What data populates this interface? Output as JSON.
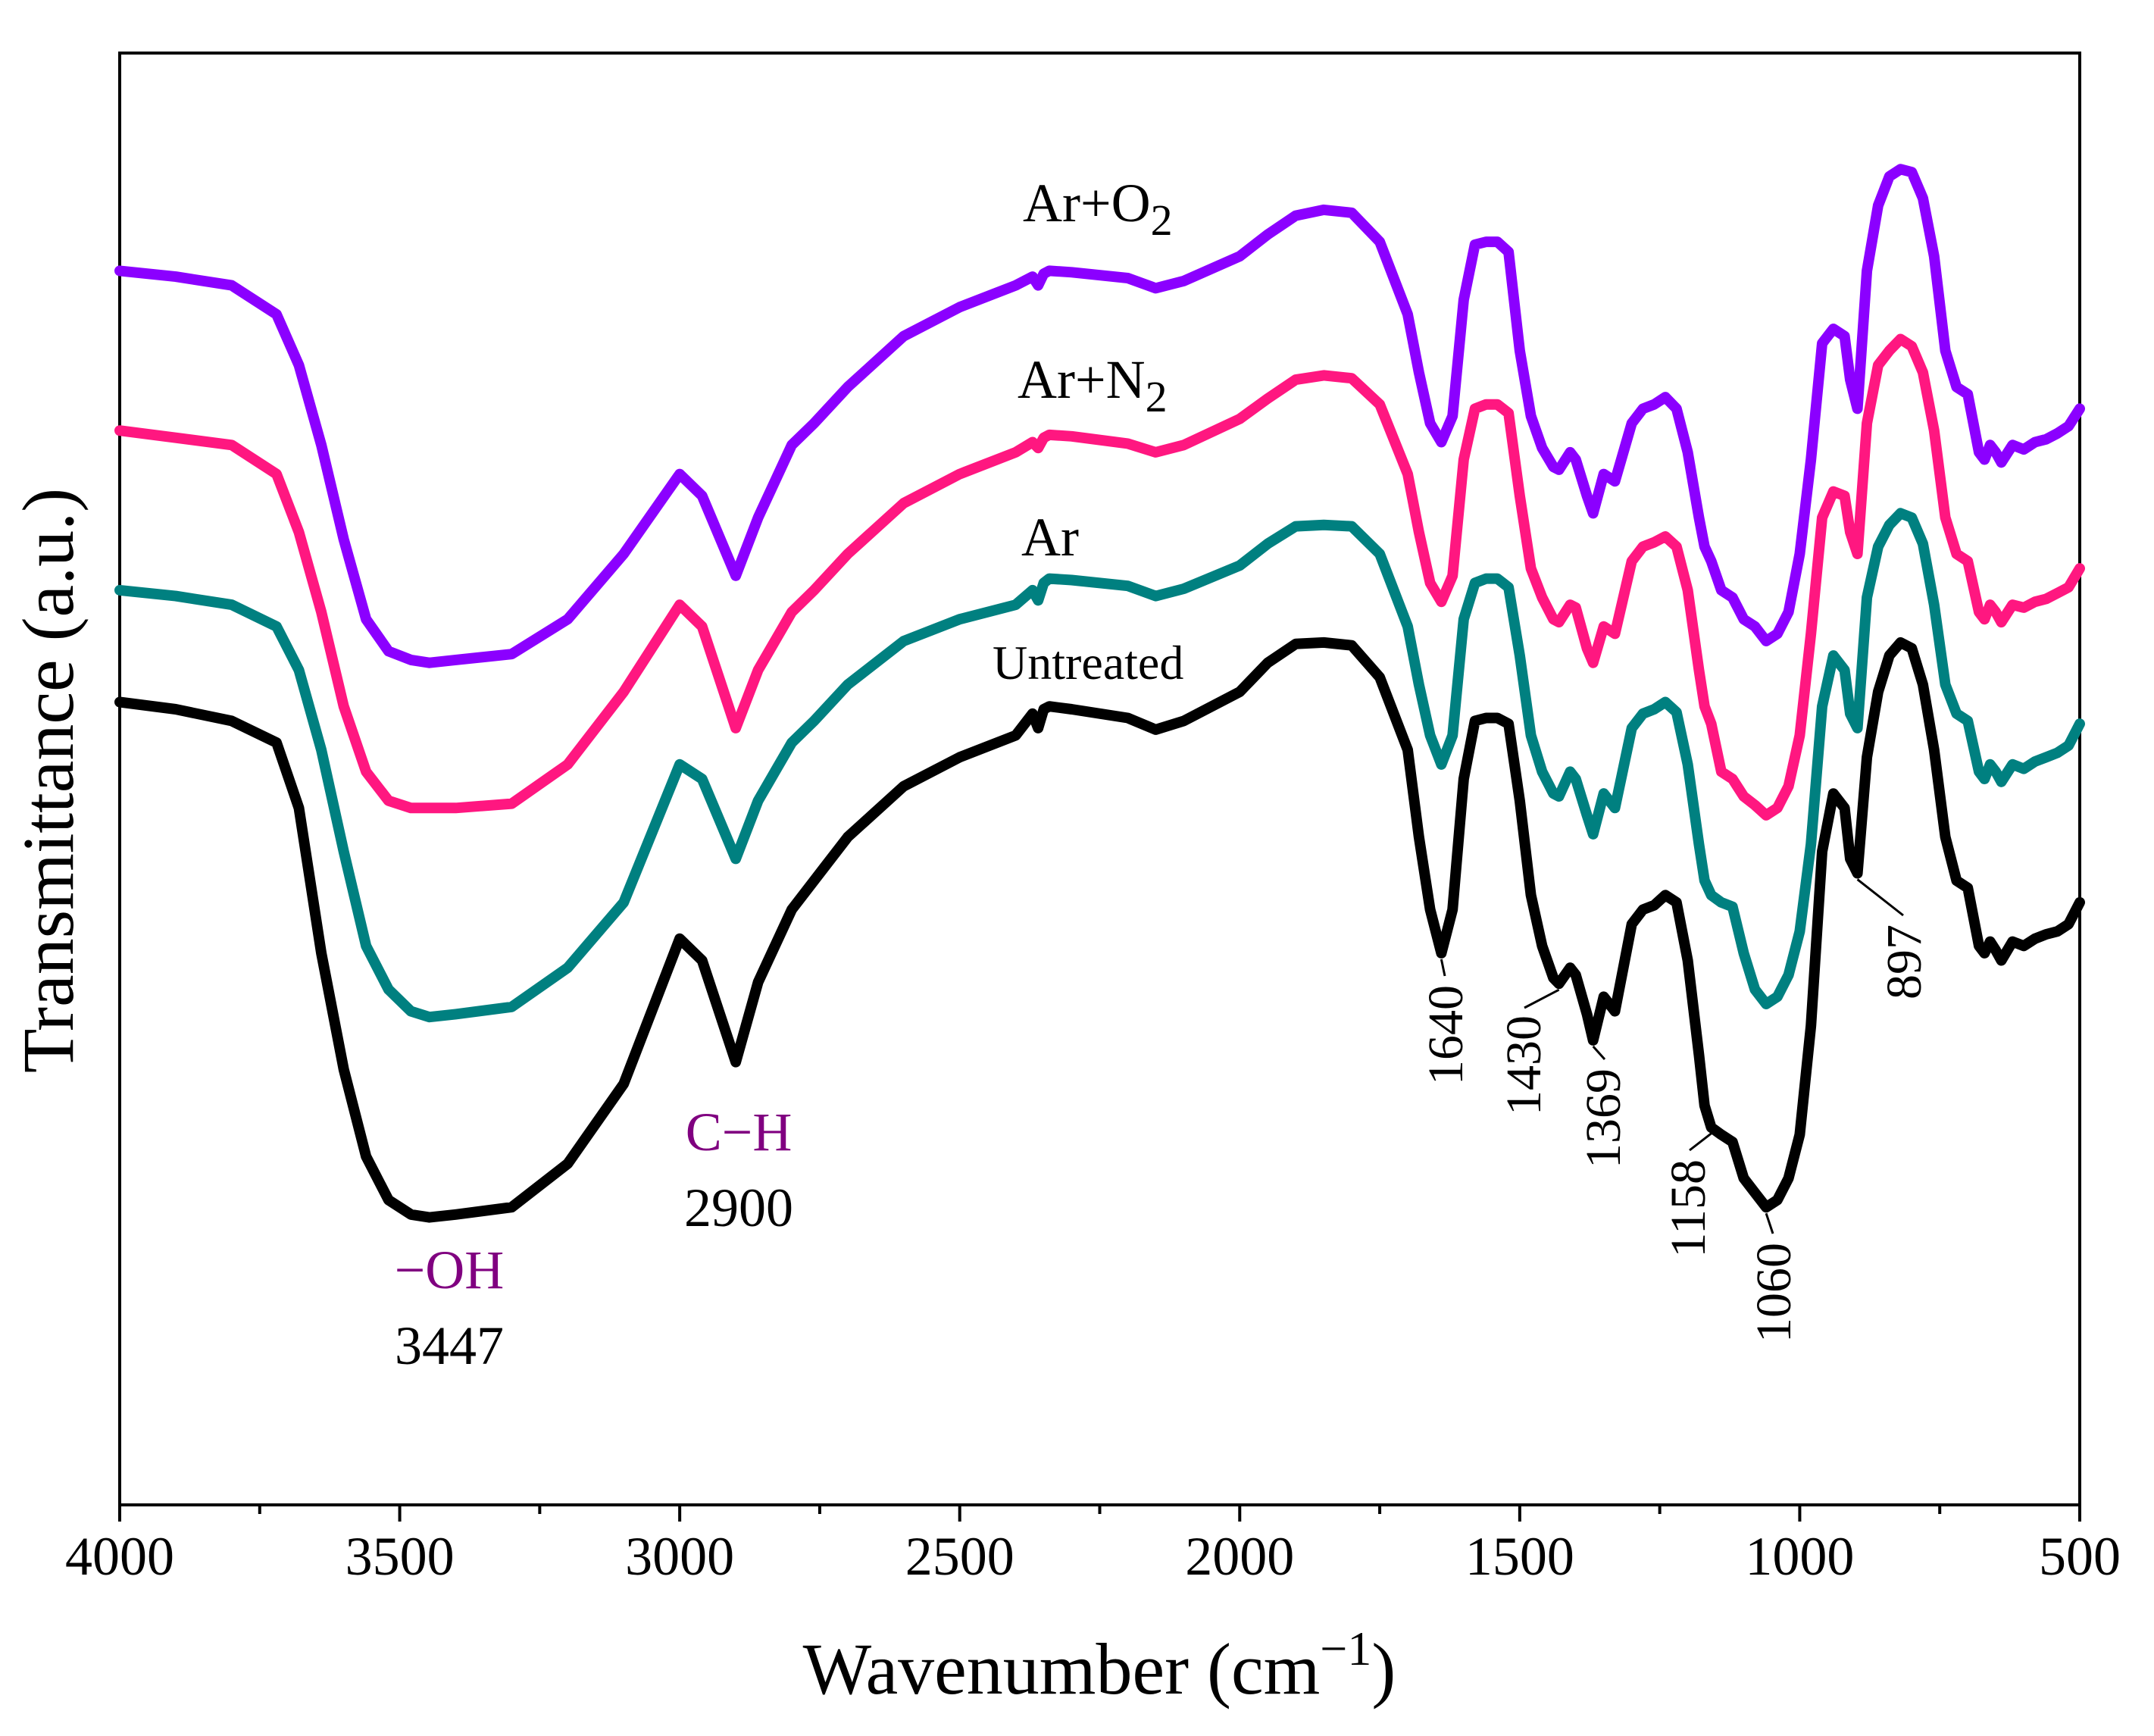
{
  "chart_data": {
    "type": "line",
    "title": "",
    "xlabel": "Wavenumber (cm",
    "xlabel_sup": "−1",
    "xlabel_close": ")",
    "ylabel": "Transmittance (a.u.)",
    "xlim": [
      4000,
      500
    ],
    "ylim": [
      0,
      100
    ],
    "x_ticks": [
      4000,
      3500,
      3000,
      2500,
      2000,
      1500,
      1000,
      500
    ],
    "x_tick_labels": [
      "4000",
      "3500",
      "3000",
      "2500",
      "2000",
      "1500",
      "1000",
      "500"
    ],
    "series": [
      {
        "name": "Untreated",
        "label": "Untreated",
        "color": "#000000",
        "x": [
          4000,
          3900,
          3800,
          3720,
          3680,
          3640,
          3600,
          3560,
          3520,
          3480,
          3447,
          3400,
          3300,
          3200,
          3100,
          3000,
          2960,
          2900,
          2860,
          2800,
          2760,
          2700,
          2600,
          2500,
          2400,
          2370,
          2360,
          2350,
          2340,
          2300,
          2200,
          2150,
          2100,
          2000,
          1950,
          1900,
          1850,
          1800,
          1750,
          1700,
          1680,
          1660,
          1640,
          1620,
          1600,
          1580,
          1560,
          1540,
          1520,
          1500,
          1480,
          1460,
          1440,
          1430,
          1410,
          1400,
          1380,
          1369,
          1350,
          1330,
          1300,
          1280,
          1260,
          1240,
          1220,
          1200,
          1180,
          1170,
          1158,
          1140,
          1120,
          1100,
          1080,
          1060,
          1040,
          1020,
          1000,
          980,
          960,
          940,
          920,
          910,
          897,
          880,
          860,
          840,
          820,
          800,
          780,
          760,
          740,
          720,
          700,
          680,
          670,
          660,
          650,
          640,
          620,
          600,
          580,
          560,
          540,
          520,
          500
        ],
        "y": [
          55.3,
          54.8,
          54.0,
          52.5,
          48.0,
          38.0,
          30.0,
          24.0,
          21.0,
          20.0,
          19.8,
          20.0,
          20.5,
          23.5,
          29.0,
          39.0,
          37.5,
          30.5,
          36.0,
          41.0,
          43.0,
          46.0,
          49.5,
          51.5,
          53.0,
          54.5,
          53.5,
          54.8,
          55.0,
          54.8,
          54.2,
          53.4,
          54.0,
          56.0,
          58.0,
          59.3,
          59.4,
          59.2,
          57.0,
          52.0,
          46.0,
          41.0,
          38.0,
          41.0,
          50.0,
          54.0,
          54.2,
          54.2,
          53.8,
          48.5,
          42.0,
          38.5,
          36.3,
          35.9,
          37.0,
          36.5,
          33.8,
          32.0,
          35.0,
          34.0,
          40.0,
          41.0,
          41.3,
          42.0,
          41.5,
          37.5,
          31.0,
          27.5,
          26.0,
          25.5,
          25.0,
          22.5,
          21.5,
          20.5,
          21.0,
          22.5,
          25.5,
          33.0,
          45.0,
          49.0,
          48.0,
          44.5,
          43.5,
          51.5,
          56.0,
          58.5,
          59.4,
          59.0,
          56.5,
          52.0,
          46.0,
          43.0,
          42.5,
          38.5,
          38.0,
          38.8,
          38.2,
          37.5,
          38.8,
          38.5,
          39.0,
          39.3,
          39.5,
          40.0,
          41.5
        ]
      },
      {
        "name": "Ar",
        "label": "Ar",
        "color": "#008080",
        "x": [
          4000,
          3900,
          3800,
          3720,
          3680,
          3640,
          3600,
          3560,
          3520,
          3480,
          3447,
          3400,
          3300,
          3200,
          3100,
          3000,
          2960,
          2900,
          2860,
          2800,
          2760,
          2700,
          2600,
          2500,
          2400,
          2370,
          2360,
          2350,
          2340,
          2300,
          2200,
          2150,
          2100,
          2000,
          1950,
          1900,
          1850,
          1800,
          1750,
          1700,
          1680,
          1660,
          1640,
          1620,
          1600,
          1580,
          1560,
          1540,
          1520,
          1500,
          1480,
          1460,
          1440,
          1430,
          1410,
          1400,
          1380,
          1369,
          1350,
          1330,
          1300,
          1280,
          1260,
          1240,
          1220,
          1200,
          1180,
          1170,
          1158,
          1140,
          1120,
          1100,
          1080,
          1060,
          1040,
          1020,
          1000,
          980,
          960,
          940,
          920,
          910,
          897,
          880,
          860,
          840,
          820,
          800,
          780,
          760,
          740,
          720,
          700,
          680,
          670,
          660,
          650,
          640,
          620,
          600,
          580,
          560,
          540,
          520,
          500
        ],
        "y": [
          63.0,
          62.6,
          62.0,
          60.5,
          57.5,
          52.0,
          45.0,
          38.5,
          35.5,
          34.0,
          33.6,
          33.8,
          34.3,
          37.0,
          41.5,
          51.0,
          50.0,
          44.5,
          48.5,
          52.5,
          54.0,
          56.5,
          59.5,
          61.0,
          62.0,
          63.0,
          62.3,
          63.5,
          63.8,
          63.7,
          63.3,
          62.6,
          63.1,
          64.7,
          66.2,
          67.4,
          67.5,
          67.4,
          65.5,
          60.5,
          56.5,
          53.0,
          51.0,
          53.0,
          61.0,
          63.5,
          63.8,
          63.8,
          63.2,
          58.5,
          53.0,
          50.5,
          49.0,
          48.8,
          50.5,
          50.0,
          47.5,
          46.2,
          49.0,
          48.0,
          53.5,
          54.5,
          54.8,
          55.3,
          54.6,
          51.0,
          45.5,
          43.0,
          42.0,
          41.5,
          41.2,
          38.0,
          35.5,
          34.5,
          35.0,
          36.5,
          39.5,
          45.5,
          55.0,
          58.5,
          57.5,
          54.5,
          53.5,
          62.5,
          66.0,
          67.5,
          68.3,
          68.0,
          66.2,
          62.0,
          56.5,
          54.5,
          54.0,
          50.5,
          50.0,
          51.0,
          50.5,
          49.8,
          51.0,
          50.7,
          51.2,
          51.5,
          51.8,
          52.3,
          53.8
        ]
      },
      {
        "name": "Ar+N2",
        "label": "Ar+N",
        "label_sub": "2",
        "color": "#FF1780",
        "x": [
          4000,
          3900,
          3800,
          3720,
          3680,
          3640,
          3600,
          3560,
          3520,
          3480,
          3447,
          3400,
          3300,
          3200,
          3100,
          3000,
          2960,
          2900,
          2860,
          2800,
          2760,
          2700,
          2600,
          2500,
          2400,
          2370,
          2360,
          2350,
          2340,
          2300,
          2200,
          2150,
          2100,
          2000,
          1950,
          1900,
          1850,
          1800,
          1750,
          1700,
          1680,
          1660,
          1640,
          1620,
          1600,
          1580,
          1560,
          1540,
          1520,
          1500,
          1480,
          1460,
          1440,
          1430,
          1410,
          1400,
          1380,
          1369,
          1350,
          1330,
          1300,
          1280,
          1260,
          1240,
          1220,
          1200,
          1180,
          1170,
          1158,
          1140,
          1120,
          1100,
          1080,
          1060,
          1040,
          1020,
          1000,
          980,
          960,
          940,
          920,
          910,
          897,
          880,
          860,
          840,
          820,
          800,
          780,
          760,
          740,
          720,
          700,
          680,
          670,
          660,
          650,
          640,
          620,
          600,
          580,
          560,
          540,
          520,
          500
        ],
        "y": [
          74.0,
          73.5,
          73.0,
          71.0,
          67.0,
          61.5,
          55.0,
          50.5,
          48.5,
          48.0,
          48.0,
          48.0,
          48.3,
          51.0,
          56.0,
          62.0,
          60.5,
          53.5,
          57.5,
          61.5,
          63.0,
          65.5,
          69.0,
          71.0,
          72.5,
          73.2,
          72.8,
          73.5,
          73.7,
          73.6,
          73.1,
          72.5,
          73.0,
          74.8,
          76.2,
          77.5,
          77.8,
          77.6,
          75.8,
          71.0,
          67.0,
          63.5,
          62.2,
          64.0,
          72.0,
          75.5,
          75.8,
          75.8,
          75.2,
          69.5,
          64.5,
          62.5,
          61.0,
          60.8,
          62.0,
          61.8,
          59.0,
          58.0,
          60.5,
          60.0,
          65.0,
          66.0,
          66.3,
          66.7,
          66.0,
          63.0,
          57.5,
          55.0,
          53.8,
          50.5,
          50.0,
          48.8,
          48.2,
          47.5,
          48.0,
          49.5,
          53.0,
          60.0,
          68.0,
          69.8,
          69.5,
          67.0,
          65.5,
          74.5,
          78.5,
          79.5,
          80.3,
          79.8,
          78.0,
          74.0,
          68.0,
          65.5,
          65.0,
          61.5,
          61.0,
          62.0,
          61.5,
          60.8,
          62.0,
          61.8,
          62.2,
          62.4,
          62.8,
          63.2,
          64.5
        ]
      },
      {
        "name": "Ar+O2",
        "label": "Ar+O",
        "label_sub": "2",
        "color": "#8B00FF",
        "x": [
          4000,
          3900,
          3800,
          3720,
          3680,
          3640,
          3600,
          3560,
          3520,
          3480,
          3447,
          3400,
          3300,
          3200,
          3100,
          3000,
          2960,
          2900,
          2860,
          2800,
          2760,
          2700,
          2600,
          2500,
          2400,
          2370,
          2360,
          2350,
          2340,
          2300,
          2200,
          2150,
          2100,
          2000,
          1950,
          1900,
          1850,
          1800,
          1750,
          1700,
          1680,
          1660,
          1640,
          1620,
          1600,
          1580,
          1560,
          1540,
          1520,
          1500,
          1480,
          1460,
          1440,
          1430,
          1410,
          1400,
          1380,
          1369,
          1350,
          1330,
          1300,
          1280,
          1260,
          1240,
          1220,
          1200,
          1180,
          1170,
          1158,
          1140,
          1120,
          1100,
          1080,
          1060,
          1040,
          1020,
          1000,
          980,
          960,
          940,
          920,
          910,
          897,
          880,
          860,
          840,
          820,
          800,
          780,
          760,
          740,
          720,
          700,
          680,
          670,
          660,
          650,
          640,
          620,
          600,
          580,
          560,
          540,
          520,
          500
        ],
        "y": [
          85.0,
          84.6,
          84.0,
          82.0,
          78.5,
          73.0,
          66.5,
          61.0,
          58.8,
          58.2,
          58.0,
          58.2,
          58.6,
          61.0,
          65.5,
          71.0,
          69.5,
          64.0,
          68.0,
          73.0,
          74.5,
          77.0,
          80.5,
          82.5,
          84.0,
          84.6,
          84.0,
          84.8,
          85.0,
          84.9,
          84.5,
          83.8,
          84.3,
          86.0,
          87.5,
          88.8,
          89.2,
          89.0,
          87.0,
          82.0,
          78.0,
          74.5,
          73.2,
          75.0,
          83.0,
          86.8,
          87.0,
          87.0,
          86.3,
          79.5,
          75.0,
          72.8,
          71.5,
          71.3,
          72.5,
          72.0,
          69.5,
          68.3,
          71.0,
          70.5,
          74.5,
          75.5,
          75.8,
          76.3,
          75.5,
          72.5,
          68.0,
          66.0,
          65.0,
          63.0,
          62.5,
          61.0,
          60.5,
          59.5,
          60.0,
          61.5,
          65.5,
          72.0,
          80.0,
          81.0,
          80.5,
          77.5,
          75.5,
          85.0,
          89.5,
          91.5,
          92.0,
          91.8,
          90.0,
          86.0,
          79.5,
          77.0,
          76.5,
          72.5,
          72.0,
          73.0,
          72.5,
          71.8,
          73.0,
          72.7,
          73.2,
          73.4,
          73.8,
          74.3,
          75.5
        ]
      }
    ],
    "annotations": {
      "oh": {
        "text": "−OH",
        "color": "#800080",
        "x": 3447
      },
      "oh_val": {
        "text": "3447",
        "color": "#000000",
        "x": 3447
      },
      "ch": {
        "text": "C−H",
        "color": "#800080",
        "x": 2900
      },
      "ch_val": {
        "text": "2900",
        "color": "#000000",
        "x": 2900
      },
      "peaks": [
        {
          "text": "1640",
          "x": 1640
        },
        {
          "text": "1430",
          "x": 1430
        },
        {
          "text": "1369",
          "x": 1369
        },
        {
          "text": "1158",
          "x": 1158
        },
        {
          "text": "1060",
          "x": 1060
        },
        {
          "text": "897",
          "x": 897
        }
      ]
    }
  }
}
